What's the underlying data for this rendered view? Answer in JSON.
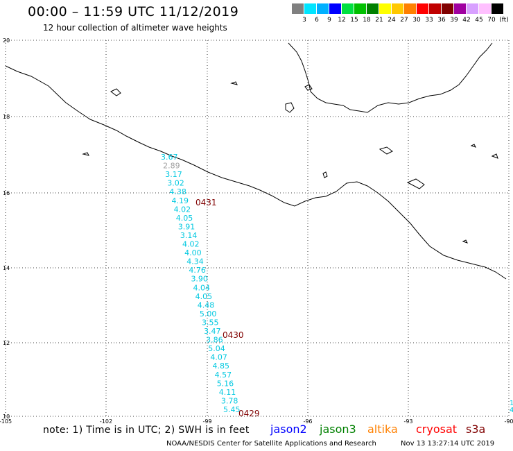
{
  "header": {
    "title": "00:00 – 11:59 UTC 11/12/2019",
    "subtitle": "12 hour collection of altimeter wave heights"
  },
  "legend": {
    "colors": [
      "#808080",
      "#00e5ff",
      "#00b0ff",
      "#0000ff",
      "#00e040",
      "#00c000",
      "#008000",
      "#ffff00",
      "#ffc800",
      "#ff8000",
      "#ff0000",
      "#c00000",
      "#800000",
      "#a000a0",
      "#d8a0ff",
      "#ffc0ff",
      "#000000"
    ],
    "labels": [
      "3",
      "6",
      "9",
      "12",
      "15",
      "18",
      "21",
      "24",
      "27",
      "30",
      "33",
      "36",
      "39",
      "42",
      "45",
      "70",
      "(ft)"
    ]
  },
  "axes": {
    "lat_labels": [
      "20",
      "18",
      "16",
      "14",
      "12",
      "10"
    ],
    "lon_labels": [
      "-105",
      "-102",
      "-99",
      "-96",
      "-93",
      "-90"
    ]
  },
  "track": {
    "values": [
      "3.67",
      "2.89",
      "3.17",
      "3.02",
      "4.38",
      "4.19",
      "4.02",
      "4.05",
      "3.91",
      "3.14",
      "4.02",
      "4.00",
      "4.34",
      "4.76",
      "3.90",
      "4.04",
      "4.05",
      "4.48",
      "5.00",
      "3.55",
      "3.47",
      "3.86",
      "5.04",
      "4.07",
      "4.85",
      "4.57",
      "5.16",
      "4.11",
      "3.78",
      "5.45"
    ],
    "times": [
      "0431",
      "0430",
      "0429"
    ]
  },
  "edge_marks": [
    "1",
    "4"
  ],
  "footer": {
    "note": "note:  1) Time is in UTC;  2) SWH is in feet",
    "satellites": [
      {
        "name": "jason2",
        "color": "#0000ff"
      },
      {
        "name": "jason3",
        "color": "#008000"
      },
      {
        "name": "altika",
        "color": "#ff8000"
      },
      {
        "name": "cryosat",
        "color": "#ff0000"
      },
      {
        "name": "s3a",
        "color": "#800000"
      }
    ],
    "credit": "NOAA/NESDIS Center for Satellite Applications and Research",
    "date": "Nov 13 13:27:14 UTC 2019"
  }
}
